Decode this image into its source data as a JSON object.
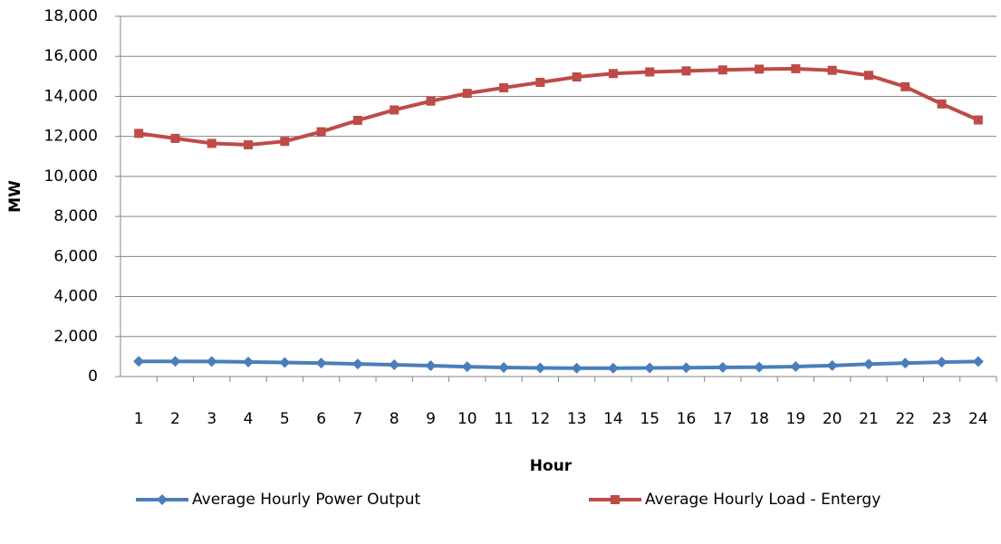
{
  "chart_data": {
    "type": "line",
    "x_label": "Hour",
    "y_label": "MW",
    "categories": [
      "1",
      "2",
      "3",
      "4",
      "5",
      "6",
      "7",
      "8",
      "9",
      "10",
      "11",
      "12",
      "13",
      "14",
      "15",
      "16",
      "17",
      "18",
      "19",
      "20",
      "21",
      "22",
      "23",
      "24"
    ],
    "series": [
      {
        "name": "Average Hourly Power Output",
        "color": "#4a7ebb",
        "marker": "diamond",
        "values": [
          760,
          760,
          750,
          730,
          700,
          670,
          630,
          590,
          540,
          490,
          450,
          430,
          420,
          420,
          430,
          440,
          460,
          470,
          500,
          550,
          620,
          670,
          720,
          750
        ]
      },
      {
        "name": "Average Hourly Load - Entergy",
        "color": "#be4b48",
        "marker": "square",
        "values": [
          12150,
          11900,
          11650,
          11580,
          11750,
          12230,
          12800,
          13320,
          13760,
          14150,
          14430,
          14700,
          14970,
          15140,
          15220,
          15270,
          15320,
          15360,
          15380,
          15300,
          15050,
          14480,
          13620,
          12820
        ]
      }
    ],
    "ylim": [
      0,
      18000
    ],
    "yticks": [
      0,
      {
        "value": 2000,
        "label": "2,000"
      },
      {
        "value": 4000,
        "label": "4,000"
      },
      {
        "value": 6000,
        "label": "6,000"
      },
      {
        "value": 8000,
        "label": "8,000"
      },
      {
        "value": 10000,
        "label": "10,000"
      },
      {
        "value": 12000,
        "label": "12,000"
      },
      {
        "value": 14000,
        "label": "14,000"
      },
      {
        "value": 16000,
        "label": "16,000"
      },
      {
        "value": 18000,
        "label": "18,000"
      }
    ],
    "grid": true,
    "legend": "bottom"
  }
}
